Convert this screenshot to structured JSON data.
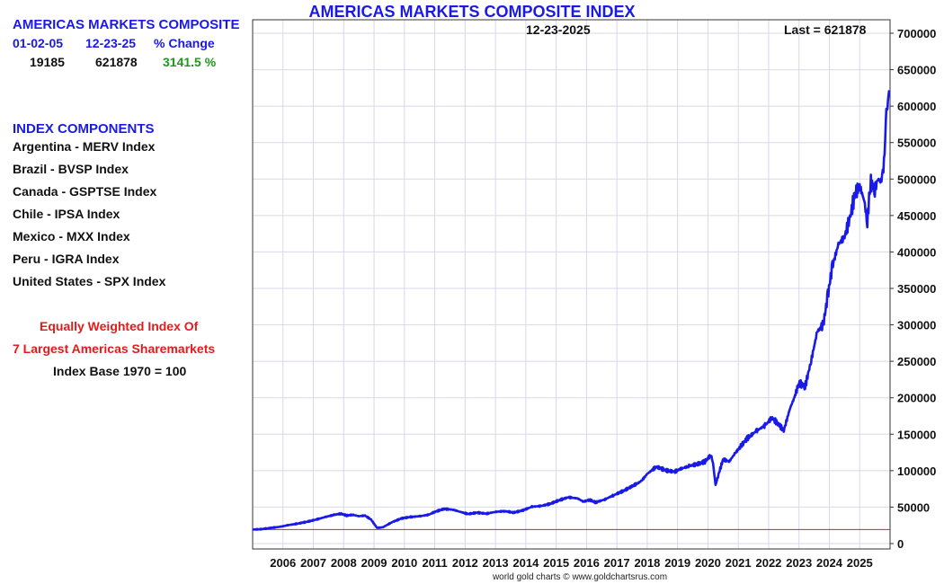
{
  "panel": {
    "header": "AMERICAS MARKETS COMPOSITE",
    "col_start": "01-02-05",
    "col_end": "12-23-25",
    "col_change": "% Change",
    "val_start": "19185",
    "val_end": "621878",
    "val_change": "3141.5 %",
    "components_title": "INDEX COMPONENTS",
    "components": [
      "Argentina - MERV Index",
      "Brazil - BVSP Index",
      "Canada - GSPTSE Index",
      "Chile - IPSA Index",
      "Mexico - MXX Index",
      "Peru - IGRA Index",
      "United States - SPX Index"
    ],
    "note_line1": "Equally Weighted Index Of",
    "note_line2": "7 Largest Americas Sharemarkets",
    "note_line3": "Index Base 1970 = 100"
  },
  "colors": {
    "series": "#1a1ae6",
    "reference_line": "#e61a1a",
    "grid": "#d8d8ea",
    "title": "#1a1ae6",
    "positive_change": "#1a9a1a"
  },
  "footer": "world gold charts © www.goldchartsrus.com",
  "chart_data": {
    "type": "line",
    "title": "AMERICAS MARKETS COMPOSITE INDEX",
    "date_label": "12-23-2025",
    "last_label": "Last = 621878",
    "ylim": [
      0,
      720000
    ],
    "y_ticks": [
      0,
      50000,
      100000,
      150000,
      200000,
      250000,
      300000,
      350000,
      400000,
      450000,
      500000,
      550000,
      600000,
      650000,
      700000
    ],
    "y_tick_labels": [
      "0",
      "50000",
      "100000",
      "150000",
      "200000",
      "250000",
      "300000",
      "350000",
      "400000",
      "450000",
      "500000",
      "550000",
      "600000",
      "650000",
      "700000"
    ],
    "y_axis_position": "right",
    "xlim": [
      2005.0,
      2026.0
    ],
    "x_tick_labels": [
      "2006",
      "2007",
      "2008",
      "2009",
      "2010",
      "2011",
      "2012",
      "2013",
      "2014",
      "2015",
      "2016",
      "2017",
      "2018",
      "2019",
      "2020",
      "2021",
      "2022",
      "2023",
      "2024",
      "2025"
    ],
    "grid": true,
    "reference_line": 19185,
    "series": [
      {
        "x": [
          2005.0,
          2005.3,
          2005.6,
          2005.9,
          2006.2,
          2006.5,
          2006.8,
          2007.1,
          2007.4,
          2007.7,
          2007.9,
          2008.1,
          2008.3,
          2008.5,
          2008.7,
          2008.9,
          2009.1,
          2009.3,
          2009.6,
          2009.9,
          2010.2,
          2010.5,
          2010.8,
          2011.0,
          2011.3,
          2011.6,
          2011.8,
          2012.1,
          2012.4,
          2012.7,
          2013.0,
          2013.3,
          2013.6,
          2013.9,
          2014.2,
          2014.5,
          2014.8,
          2015.1,
          2015.4,
          2015.7,
          2015.9,
          2016.1,
          2016.3,
          2016.6,
          2016.9,
          2017.2,
          2017.5,
          2017.8,
          2018.0,
          2018.3,
          2018.6,
          2018.9,
          2019.1,
          2019.4,
          2019.7,
          2019.9,
          2020.1,
          2020.17,
          2020.25,
          2020.35,
          2020.5,
          2020.7,
          2020.9,
          2021.1,
          2021.3,
          2021.6,
          2021.9,
          2022.1,
          2022.3,
          2022.5,
          2022.7,
          2022.85,
          2023.0,
          2023.2,
          2023.4,
          2023.6,
          2023.8,
          2023.95,
          2024.1,
          2024.3,
          2024.5,
          2024.7,
          2024.85,
          2025.0,
          2025.15,
          2025.25,
          2025.35,
          2025.5,
          2025.6,
          2025.7,
          2025.8,
          2025.88,
          2025.93,
          2025.97
        ],
        "values": [
          19185,
          19800,
          21500,
          23000,
          25500,
          27500,
          30000,
          33000,
          36500,
          39500,
          41000,
          38500,
          39500,
          37500,
          38500,
          33000,
          21500,
          22500,
          29500,
          34500,
          36500,
          37500,
          39500,
          43500,
          47500,
          46500,
          44000,
          40500,
          42500,
          41000,
          43500,
          44500,
          42500,
          45500,
          50500,
          51500,
          54500,
          59500,
          63500,
          62000,
          57500,
          60000,
          56500,
          60500,
          66500,
          72000,
          78500,
          85500,
          95500,
          105500,
          100500,
          98500,
          102500,
          106500,
          109500,
          112500,
          121500,
          110000,
          80000,
          95000,
          115500,
          112500,
          124000,
          134500,
          144500,
          154500,
          162500,
          172500,
          165000,
          155000,
          185000,
          200500,
          220500,
          215000,
          250500,
          290500,
          300500,
          340500,
          380500,
          410500,
          420500,
          450500,
          480500,
          490500,
          470500,
          440000,
          495500,
          485000,
          500500,
          495500,
          520500,
          590500,
          605500,
          621878
        ]
      }
    ]
  }
}
